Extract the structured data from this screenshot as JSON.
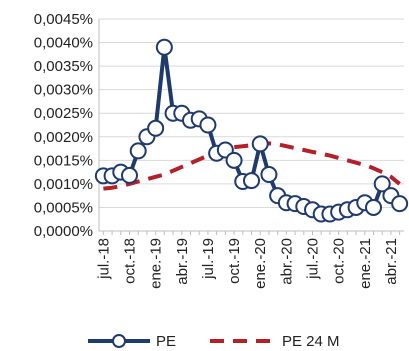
{
  "colors": {
    "pe": "#1f3a6d",
    "pe24m": "#b3202a",
    "grid": "#d9d9d9",
    "axis": "#bfbfbf",
    "text": "#222222",
    "marker_fill": "#ffffff"
  },
  "chart_data": {
    "type": "line",
    "title": "",
    "xlabel": "",
    "ylabel": "",
    "ylim": [
      0,
      0.0045
    ],
    "grid": true,
    "legend_position": "bottom",
    "y_ticks": [
      0,
      0.0005,
      0.001,
      0.0015,
      0.002,
      0.0025,
      0.003,
      0.0035,
      0.004,
      0.0045
    ],
    "y_tick_labels": [
      "0,0000%",
      "0,0005%",
      "0,0010%",
      "0,0015%",
      "0,0020%",
      "0,0025%",
      "0,0030%",
      "0,0035%",
      "0,0040%",
      "0,0045%"
    ],
    "x": [
      "jul.-18",
      "ago.-18",
      "sep.-18",
      "oct.-18",
      "nov.-18",
      "dic.-18",
      "ene.-19",
      "feb.-19",
      "mar.-19",
      "abr.-19",
      "may.-19",
      "jun.-19",
      "jul.-19",
      "ago.-19",
      "sep.-19",
      "oct.-19",
      "nov.-19",
      "dic.-19",
      "ene.-20",
      "feb.-20",
      "mar.-20",
      "abr.-20",
      "may.-20",
      "jun.-20",
      "jul.-20",
      "ago.-20",
      "sep.-20",
      "oct.-20",
      "nov.-20",
      "dic.-20",
      "ene.-21",
      "feb.-21",
      "mar.-21",
      "abr.-21",
      "may.-21"
    ],
    "x_tick_labels": [
      "jul.-18",
      "oct.-18",
      "ene.-19",
      "abr.-19",
      "jul.-19",
      "oct.-19",
      "ene.-20",
      "abr.-20",
      "jul.-20",
      "oct.-20",
      "ene.-21",
      "abr.-21"
    ],
    "series": [
      {
        "name": "PE",
        "style": "line-with-markers",
        "values": [
          0.00117,
          0.00117,
          0.00125,
          0.00118,
          0.0017,
          0.002,
          0.00218,
          0.0039,
          0.0025,
          0.0025,
          0.00235,
          0.00238,
          0.00225,
          0.00165,
          0.00172,
          0.0015,
          0.00105,
          0.00107,
          0.00185,
          0.0012,
          0.00075,
          0.0006,
          0.00058,
          0.00052,
          0.00045,
          0.00036,
          0.00036,
          0.0004,
          0.00045,
          0.0005,
          0.0006,
          0.0005,
          0.001,
          0.00075,
          0.00058
        ]
      },
      {
        "name": "PE 24 M",
        "style": "dashed",
        "values": [
          0.0009,
          0.00092,
          0.00095,
          0.001,
          0.00105,
          0.0011,
          0.00115,
          0.0012,
          0.00128,
          0.00136,
          0.00144,
          0.00152,
          0.0016,
          0.00168,
          0.00175,
          0.00178,
          0.0018,
          0.00182,
          0.00185,
          0.00186,
          0.00184,
          0.0018,
          0.00176,
          0.00172,
          0.00168,
          0.00164,
          0.0016,
          0.00155,
          0.0015,
          0.00145,
          0.0014,
          0.00133,
          0.00125,
          0.00115,
          0.001
        ]
      }
    ]
  }
}
